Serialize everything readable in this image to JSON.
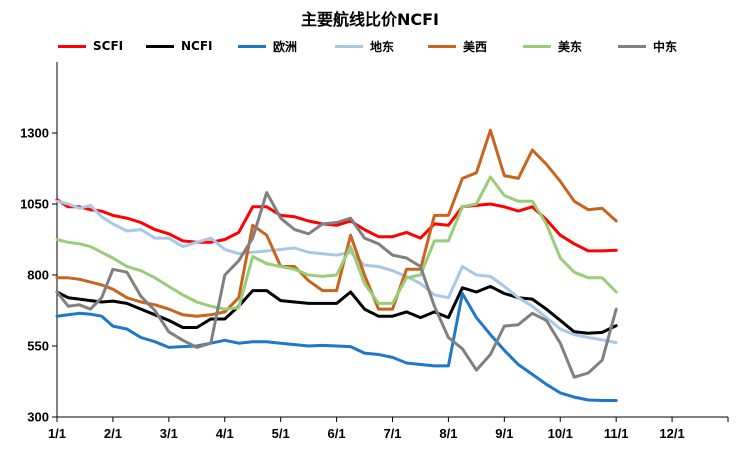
{
  "chart_data": {
    "type": "line",
    "title": "主要航线比价NCFI",
    "xlabel": "",
    "ylabel": "",
    "x_range": [
      0,
      12
    ],
    "ylim": [
      300,
      1550
    ],
    "yticks": [
      300,
      550,
      800,
      1050,
      1300
    ],
    "xticks": [
      0,
      1,
      2,
      3,
      4,
      5,
      6,
      7,
      8,
      9,
      10,
      11
    ],
    "xtick_labels": [
      "1/1",
      "2/1",
      "3/1",
      "4/1",
      "5/1",
      "6/1",
      "7/1",
      "8/1",
      "9/1",
      "10/1",
      "11/1",
      "12/1"
    ],
    "grid": false,
    "legend_position": "top",
    "series": [
      {
        "name": "SCFI",
        "color": "#ff0000",
        "points": [
          [
            0,
            1065
          ],
          [
            0.2,
            1040
          ],
          [
            0.4,
            1040
          ],
          [
            0.6,
            1030
          ],
          [
            0.8,
            1025
          ],
          [
            1.0,
            1010
          ],
          [
            1.25,
            1000
          ],
          [
            1.5,
            985
          ],
          [
            1.75,
            960
          ],
          [
            2.0,
            945
          ],
          [
            2.25,
            920
          ],
          [
            2.5,
            915
          ],
          [
            2.75,
            915
          ],
          [
            3.0,
            925
          ],
          [
            3.25,
            950
          ],
          [
            3.5,
            1040
          ],
          [
            3.75,
            1040
          ],
          [
            4.0,
            1010
          ],
          [
            4.25,
            1005
          ],
          [
            4.5,
            990
          ],
          [
            4.75,
            980
          ],
          [
            5.0,
            975
          ],
          [
            5.25,
            990
          ],
          [
            5.5,
            960
          ],
          [
            5.75,
            935
          ],
          [
            6.0,
            935
          ],
          [
            6.25,
            950
          ],
          [
            6.5,
            930
          ],
          [
            6.75,
            980
          ],
          [
            7.0,
            975
          ],
          [
            7.25,
            1040
          ],
          [
            7.5,
            1045
          ],
          [
            7.75,
            1050
          ],
          [
            8.0,
            1040
          ],
          [
            8.25,
            1025
          ],
          [
            8.5,
            1040
          ],
          [
            8.75,
            995
          ],
          [
            9.0,
            940
          ],
          [
            9.25,
            910
          ],
          [
            9.5,
            885
          ],
          [
            9.75,
            885
          ],
          [
            10.0,
            887
          ]
        ]
      },
      {
        "name": "NCFI",
        "color": "#000000",
        "points": [
          [
            0,
            740
          ],
          [
            0.2,
            720
          ],
          [
            0.4,
            715
          ],
          [
            0.6,
            710
          ],
          [
            0.8,
            705
          ],
          [
            1.0,
            708
          ],
          [
            1.25,
            700
          ],
          [
            1.5,
            680
          ],
          [
            1.75,
            660
          ],
          [
            2.0,
            640
          ],
          [
            2.25,
            615
          ],
          [
            2.5,
            615
          ],
          [
            2.75,
            645
          ],
          [
            3.0,
            645
          ],
          [
            3.25,
            690
          ],
          [
            3.5,
            745
          ],
          [
            3.75,
            745
          ],
          [
            4.0,
            710
          ],
          [
            4.25,
            705
          ],
          [
            4.5,
            700
          ],
          [
            4.75,
            700
          ],
          [
            5.0,
            700
          ],
          [
            5.25,
            740
          ],
          [
            5.5,
            680
          ],
          [
            5.75,
            655
          ],
          [
            6.0,
            655
          ],
          [
            6.25,
            670
          ],
          [
            6.5,
            650
          ],
          [
            6.75,
            670
          ],
          [
            7.0,
            650
          ],
          [
            7.25,
            755
          ],
          [
            7.5,
            740
          ],
          [
            7.75,
            760
          ],
          [
            8.0,
            735
          ],
          [
            8.25,
            720
          ],
          [
            8.5,
            715
          ],
          [
            8.75,
            680
          ],
          [
            9.0,
            640
          ],
          [
            9.25,
            600
          ],
          [
            9.5,
            595
          ],
          [
            9.75,
            598
          ],
          [
            10.0,
            622
          ]
        ]
      },
      {
        "name": "欧洲",
        "color": "#1f77c8",
        "points": [
          [
            0,
            655
          ],
          [
            0.2,
            660
          ],
          [
            0.4,
            665
          ],
          [
            0.6,
            662
          ],
          [
            0.8,
            655
          ],
          [
            1.0,
            620
          ],
          [
            1.25,
            610
          ],
          [
            1.5,
            580
          ],
          [
            1.75,
            565
          ],
          [
            2.0,
            545
          ],
          [
            2.25,
            548
          ],
          [
            2.5,
            550
          ],
          [
            2.75,
            560
          ],
          [
            3.0,
            570
          ],
          [
            3.25,
            560
          ],
          [
            3.5,
            565
          ],
          [
            3.75,
            565
          ],
          [
            4.0,
            560
          ],
          [
            4.25,
            555
          ],
          [
            4.5,
            550
          ],
          [
            4.75,
            552
          ],
          [
            5.0,
            550
          ],
          [
            5.25,
            548
          ],
          [
            5.5,
            525
          ],
          [
            5.75,
            520
          ],
          [
            6.0,
            510
          ],
          [
            6.25,
            490
          ],
          [
            6.5,
            485
          ],
          [
            6.75,
            480
          ],
          [
            7.0,
            480
          ],
          [
            7.25,
            735
          ],
          [
            7.5,
            650
          ],
          [
            7.75,
            590
          ],
          [
            8.0,
            535
          ],
          [
            8.25,
            485
          ],
          [
            8.5,
            450
          ],
          [
            8.75,
            415
          ],
          [
            9.0,
            385
          ],
          [
            9.25,
            370
          ],
          [
            9.5,
            360
          ],
          [
            9.75,
            358
          ],
          [
            10.0,
            358
          ]
        ]
      },
      {
        "name": "地东",
        "color": "#a9c8e8",
        "points": [
          [
            0,
            1060
          ],
          [
            0.2,
            1050
          ],
          [
            0.4,
            1035
          ],
          [
            0.6,
            1045
          ],
          [
            0.8,
            1005
          ],
          [
            1.0,
            980
          ],
          [
            1.25,
            955
          ],
          [
            1.5,
            960
          ],
          [
            1.75,
            930
          ],
          [
            2.0,
            930
          ],
          [
            2.25,
            900
          ],
          [
            2.5,
            915
          ],
          [
            2.75,
            930
          ],
          [
            3.0,
            890
          ],
          [
            3.25,
            875
          ],
          [
            3.5,
            880
          ],
          [
            3.75,
            885
          ],
          [
            4.0,
            890
          ],
          [
            4.25,
            895
          ],
          [
            4.5,
            880
          ],
          [
            4.75,
            875
          ],
          [
            5.0,
            870
          ],
          [
            5.25,
            880
          ],
          [
            5.5,
            835
          ],
          [
            5.75,
            830
          ],
          [
            6.0,
            815
          ],
          [
            6.25,
            795
          ],
          [
            6.5,
            770
          ],
          [
            6.75,
            730
          ],
          [
            7.0,
            720
          ],
          [
            7.25,
            830
          ],
          [
            7.5,
            800
          ],
          [
            7.75,
            795
          ],
          [
            8.0,
            760
          ],
          [
            8.25,
            720
          ],
          [
            8.5,
            690
          ],
          [
            8.75,
            650
          ],
          [
            9.0,
            610
          ],
          [
            9.25,
            590
          ],
          [
            9.5,
            580
          ],
          [
            9.75,
            572
          ],
          [
            10.0,
            562
          ]
        ]
      },
      {
        "name": "美西",
        "color": "#c8641e",
        "points": [
          [
            0,
            790
          ],
          [
            0.2,
            790
          ],
          [
            0.4,
            785
          ],
          [
            0.6,
            775
          ],
          [
            0.8,
            765
          ],
          [
            1.0,
            750
          ],
          [
            1.25,
            720
          ],
          [
            1.5,
            705
          ],
          [
            1.75,
            695
          ],
          [
            2.0,
            680
          ],
          [
            2.25,
            660
          ],
          [
            2.5,
            655
          ],
          [
            2.75,
            660
          ],
          [
            3.0,
            670
          ],
          [
            3.25,
            720
          ],
          [
            3.5,
            975
          ],
          [
            3.75,
            940
          ],
          [
            4.0,
            830
          ],
          [
            4.25,
            830
          ],
          [
            4.5,
            780
          ],
          [
            4.75,
            745
          ],
          [
            5.0,
            745
          ],
          [
            5.25,
            940
          ],
          [
            5.5,
            800
          ],
          [
            5.75,
            680
          ],
          [
            6.0,
            680
          ],
          [
            6.25,
            820
          ],
          [
            6.5,
            820
          ],
          [
            6.75,
            1010
          ],
          [
            7.0,
            1010
          ],
          [
            7.25,
            1140
          ],
          [
            7.5,
            1160
          ],
          [
            7.75,
            1310
          ],
          [
            8.0,
            1150
          ],
          [
            8.25,
            1140
          ],
          [
            8.5,
            1240
          ],
          [
            8.75,
            1190
          ],
          [
            9.0,
            1130
          ],
          [
            9.25,
            1060
          ],
          [
            9.5,
            1030
          ],
          [
            9.75,
            1035
          ],
          [
            10.0,
            990
          ]
        ]
      },
      {
        "name": "美东",
        "color": "#9acd78",
        "points": [
          [
            0,
            925
          ],
          [
            0.2,
            915
          ],
          [
            0.4,
            910
          ],
          [
            0.6,
            900
          ],
          [
            0.8,
            880
          ],
          [
            1.0,
            860
          ],
          [
            1.25,
            830
          ],
          [
            1.5,
            815
          ],
          [
            1.75,
            790
          ],
          [
            2.0,
            760
          ],
          [
            2.25,
            730
          ],
          [
            2.5,
            705
          ],
          [
            2.75,
            690
          ],
          [
            3.0,
            680
          ],
          [
            3.25,
            685
          ],
          [
            3.5,
            865
          ],
          [
            3.75,
            840
          ],
          [
            4.0,
            830
          ],
          [
            4.25,
            820
          ],
          [
            4.5,
            800
          ],
          [
            4.75,
            795
          ],
          [
            5.0,
            800
          ],
          [
            5.25,
            900
          ],
          [
            5.5,
            770
          ],
          [
            5.75,
            700
          ],
          [
            6.0,
            700
          ],
          [
            6.25,
            790
          ],
          [
            6.5,
            800
          ],
          [
            6.75,
            920
          ],
          [
            7.0,
            920
          ],
          [
            7.25,
            1040
          ],
          [
            7.5,
            1050
          ],
          [
            7.75,
            1145
          ],
          [
            8.0,
            1080
          ],
          [
            8.25,
            1060
          ],
          [
            8.5,
            1060
          ],
          [
            8.75,
            980
          ],
          [
            9.0,
            860
          ],
          [
            9.25,
            810
          ],
          [
            9.5,
            790
          ],
          [
            9.75,
            790
          ],
          [
            10.0,
            740
          ]
        ]
      },
      {
        "name": "中东",
        "color": "#808080",
        "points": [
          [
            0,
            740
          ],
          [
            0.2,
            690
          ],
          [
            0.4,
            695
          ],
          [
            0.6,
            680
          ],
          [
            0.8,
            720
          ],
          [
            1.0,
            820
          ],
          [
            1.25,
            810
          ],
          [
            1.5,
            725
          ],
          [
            1.75,
            675
          ],
          [
            2.0,
            600
          ],
          [
            2.25,
            570
          ],
          [
            2.5,
            545
          ],
          [
            2.75,
            560
          ],
          [
            3.0,
            800
          ],
          [
            3.25,
            850
          ],
          [
            3.5,
            930
          ],
          [
            3.75,
            1090
          ],
          [
            4.0,
            1000
          ],
          [
            4.25,
            960
          ],
          [
            4.5,
            945
          ],
          [
            4.75,
            980
          ],
          [
            5.0,
            985
          ],
          [
            5.25,
            1000
          ],
          [
            5.5,
            930
          ],
          [
            5.75,
            910
          ],
          [
            6.0,
            870
          ],
          [
            6.25,
            860
          ],
          [
            6.5,
            830
          ],
          [
            6.75,
            690
          ],
          [
            7.0,
            580
          ],
          [
            7.25,
            540
          ],
          [
            7.5,
            465
          ],
          [
            7.75,
            520
          ],
          [
            8.0,
            620
          ],
          [
            8.25,
            625
          ],
          [
            8.5,
            665
          ],
          [
            8.75,
            640
          ],
          [
            9.0,
            560
          ],
          [
            9.25,
            440
          ],
          [
            9.5,
            455
          ],
          [
            9.75,
            500
          ],
          [
            10.0,
            680
          ]
        ]
      }
    ]
  }
}
